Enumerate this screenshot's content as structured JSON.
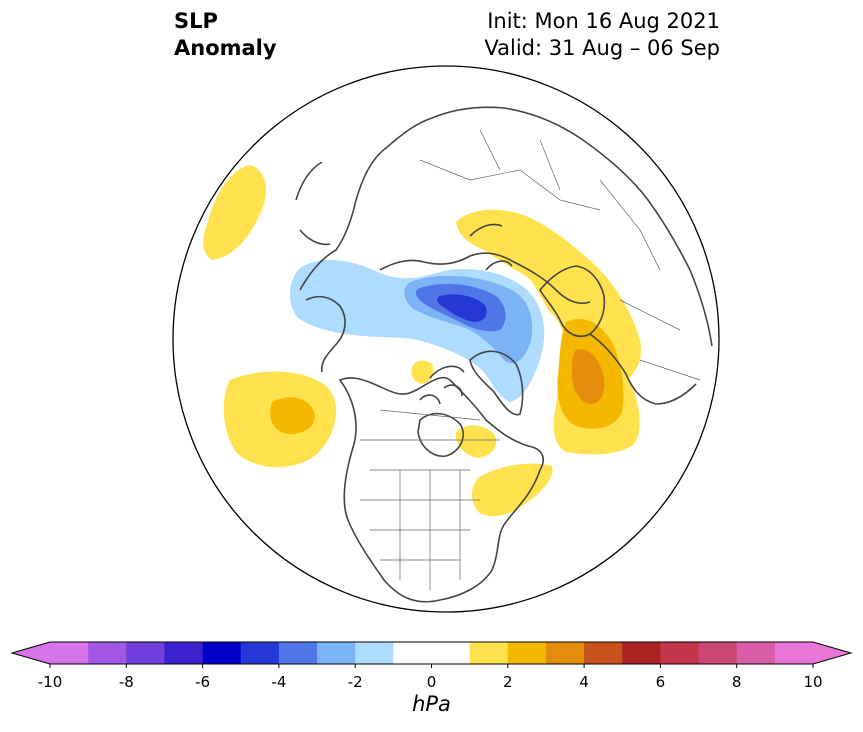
{
  "title": {
    "left_line1": "SLP",
    "left_line2": "Anomaly",
    "init": "Init: Mon 16 Aug 2021",
    "valid": "Valid: 31 Aug – 06 Sep"
  },
  "colorbar": {
    "unit": "hPa",
    "min": -10,
    "max": 10,
    "step": 1,
    "tick_labels": [
      "-10",
      "-8",
      "-6",
      "-4",
      "-2",
      "0",
      "2",
      "4",
      "6",
      "8",
      "10"
    ],
    "colors": [
      "#d775e8",
      "#a157e3",
      "#7140dc",
      "#3c21cf",
      "#0000cb",
      "#2537d5",
      "#5075e6",
      "#7bb3f5",
      "#addcfe",
      "#ffffff",
      "#ffffff",
      "#ffe24d",
      "#f4b800",
      "#e48d0d",
      "#c7521a",
      "#ab2322",
      "#c33549",
      "#cc4775",
      "#d95ea7",
      "#e976d9"
    ],
    "extend_low_color": "#d775e8",
    "extend_high_color": "#e976d9"
  }
}
